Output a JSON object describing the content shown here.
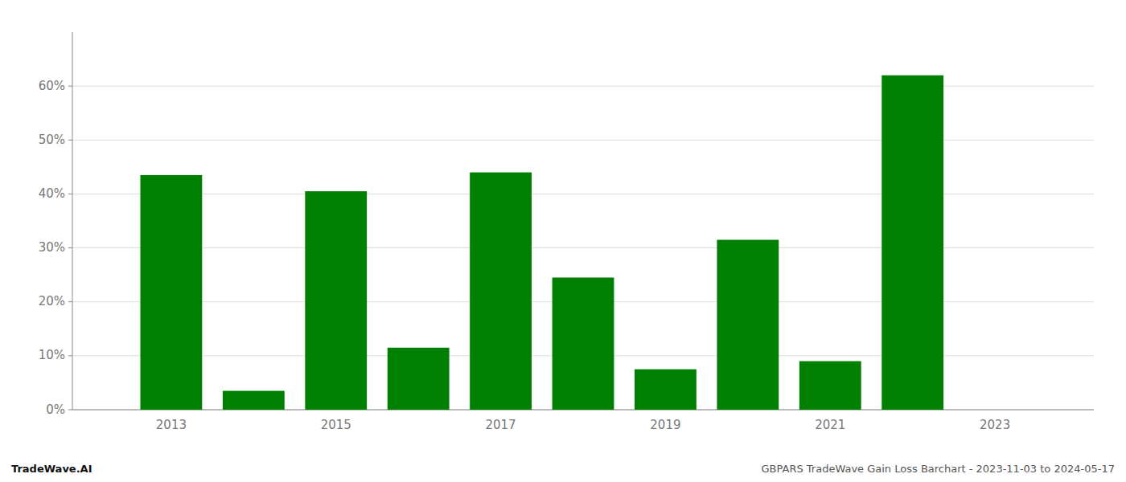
{
  "chart_data": {
    "type": "bar",
    "x": [
      2013,
      2014,
      2015,
      2016,
      2017,
      2018,
      2019,
      2020,
      2021,
      2022
    ],
    "values": [
      0.435,
      0.035,
      0.405,
      0.115,
      0.44,
      0.245,
      0.075,
      0.315,
      0.09,
      0.62
    ],
    "color": "#008000",
    "xlim": [
      2011.8,
      2024.2
    ],
    "xticks": [
      2013,
      2015,
      2017,
      2019,
      2021,
      2023
    ],
    "ylim": [
      0.0,
      0.7
    ],
    "yticks": [
      {
        "value": 0.0,
        "label": "0%"
      },
      {
        "value": 0.1,
        "label": "10%"
      },
      {
        "value": 0.2,
        "label": "20%"
      },
      {
        "value": 0.3,
        "label": "30%"
      },
      {
        "value": 0.4,
        "label": "40%"
      },
      {
        "value": 0.5,
        "label": "50%"
      },
      {
        "value": 0.6,
        "label": "60%"
      }
    ],
    "grid": true,
    "annotations": [
      "TradeWave.AI",
      "GBPARS TradeWave Gain Loss Barchart - 2023-11-03 to 2024-05-17"
    ]
  }
}
